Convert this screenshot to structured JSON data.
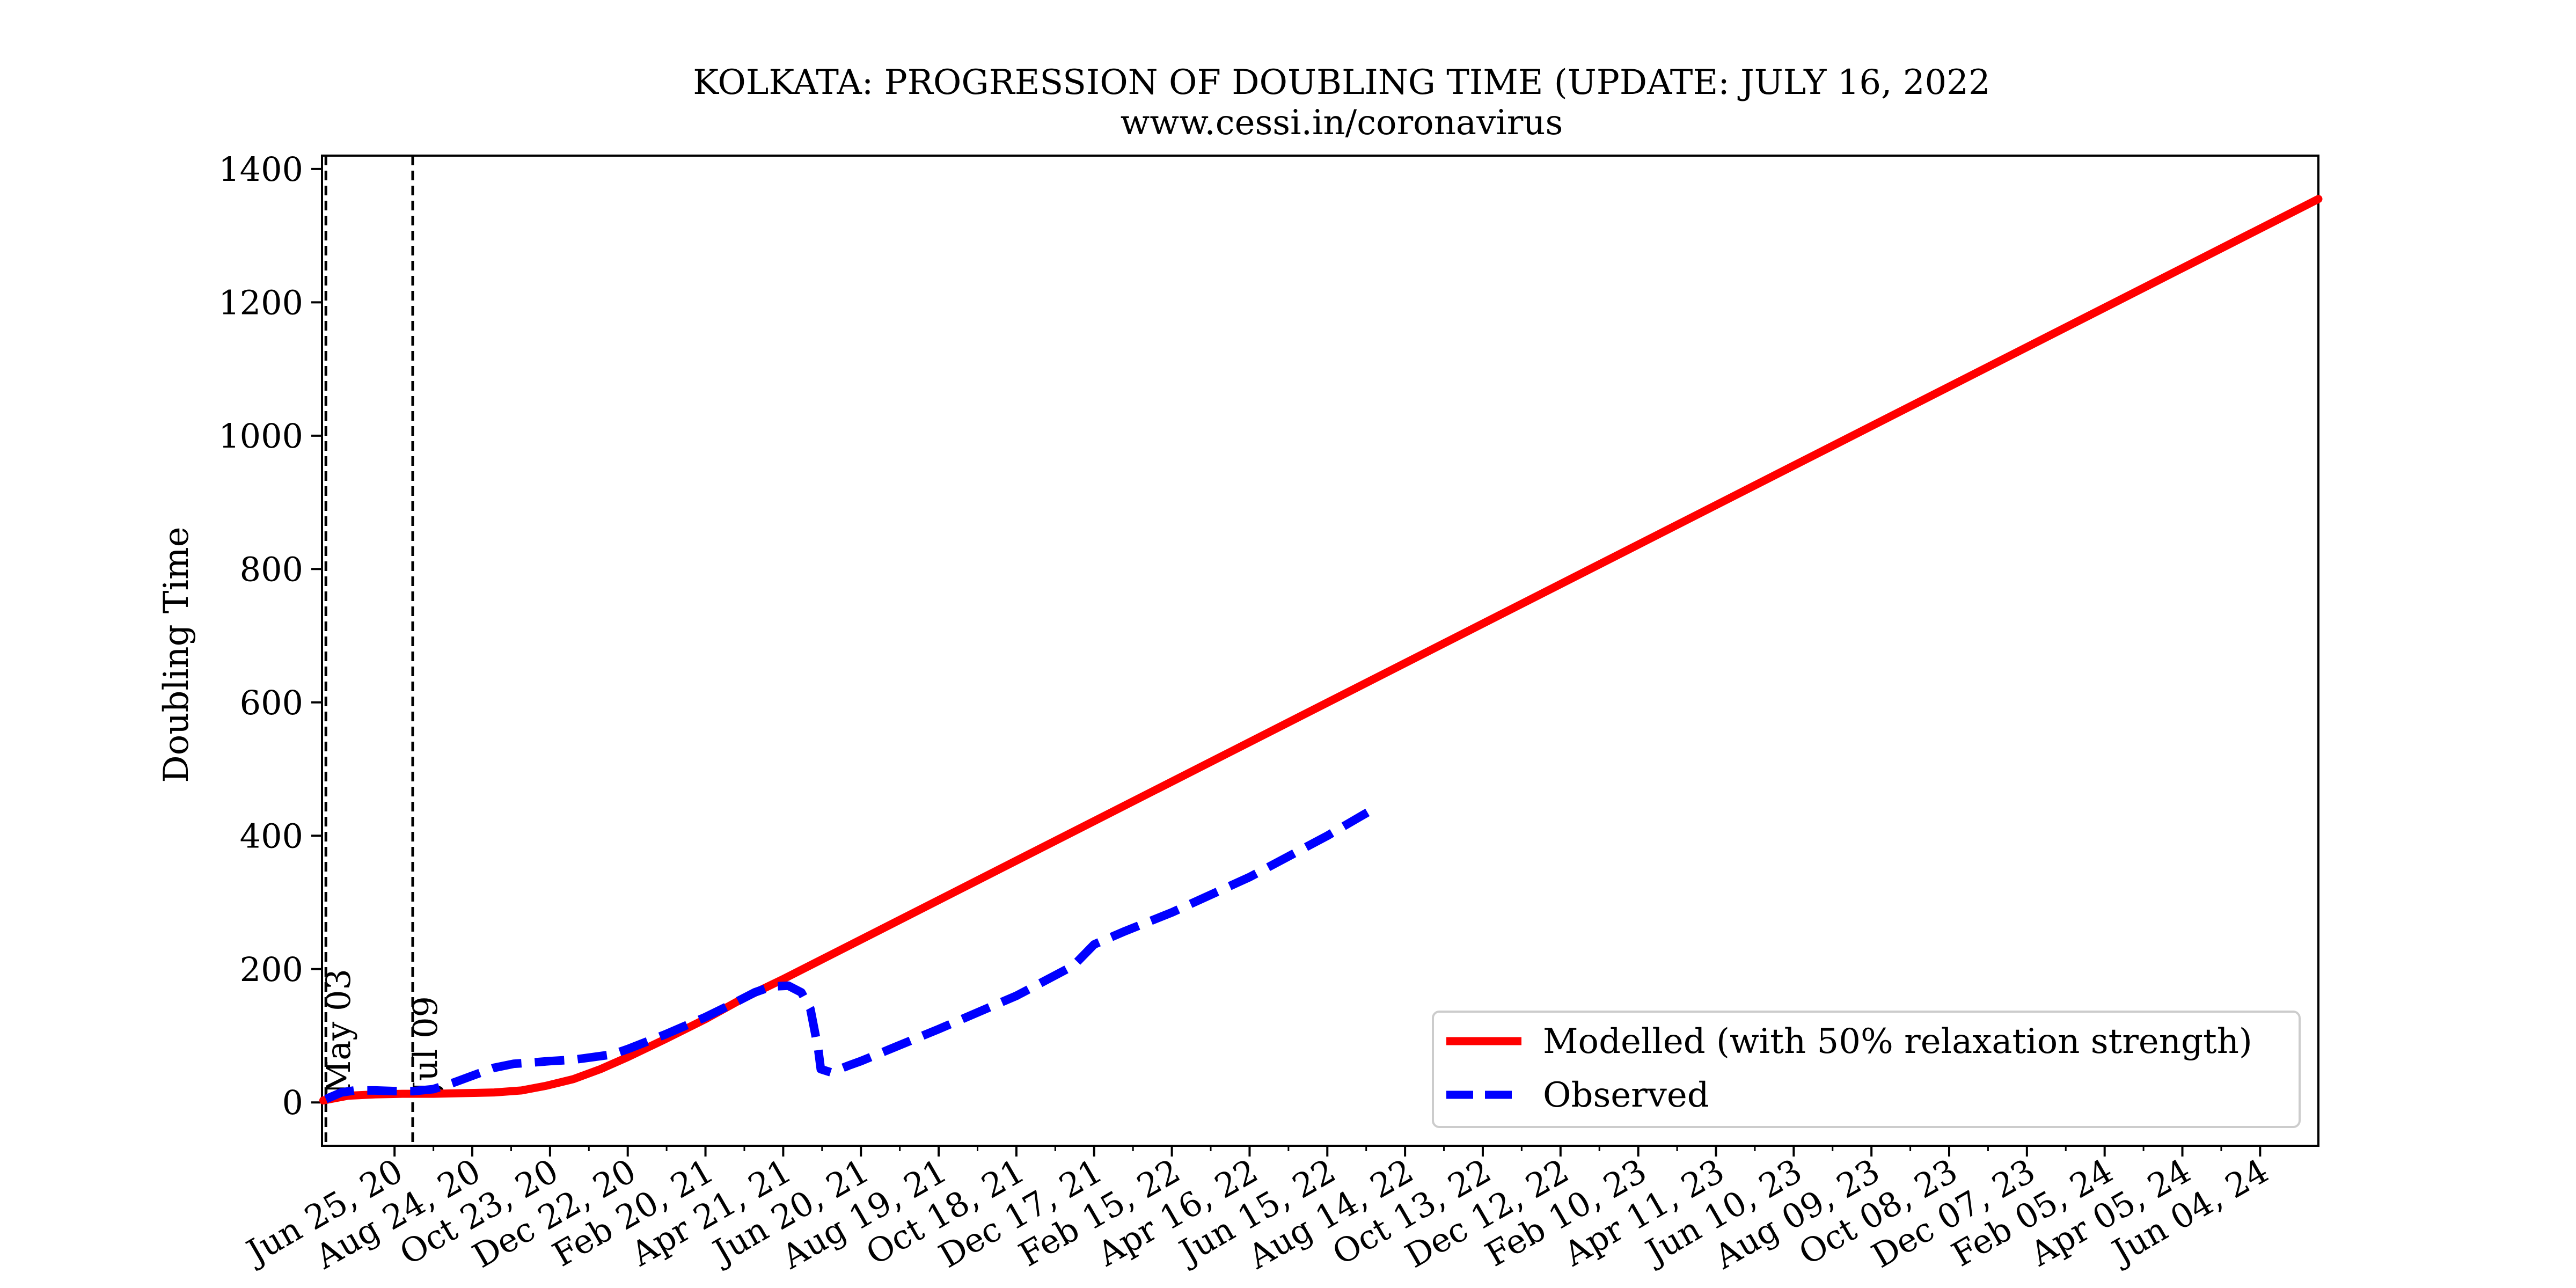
{
  "chart_data": {
    "type": "line",
    "title": "KOLKATA: PROGRESSION OF DOUBLING TIME (UPDATE: JULY 16, 2022",
    "subtitle": "www.cessi.in/coronavirus",
    "xlabel": "",
    "ylabel": "Doubling Time",
    "xlim": [
      "2020-04-30",
      "2024-07-19"
    ],
    "ylim": [
      -65,
      1420
    ],
    "y_ticks": [
      0,
      200,
      400,
      600,
      800,
      1000,
      1200,
      1400
    ],
    "x_ticks": [
      {
        "date": "2020-06-25",
        "label": "Jun 25, 20"
      },
      {
        "date": "2020-08-24",
        "label": "Aug 24, 20"
      },
      {
        "date": "2020-10-23",
        "label": "Oct 23, 20"
      },
      {
        "date": "2020-12-22",
        "label": "Dec 22, 20"
      },
      {
        "date": "2021-02-20",
        "label": "Feb 20, 21"
      },
      {
        "date": "2021-04-21",
        "label": "Apr 21, 21"
      },
      {
        "date": "2021-06-20",
        "label": "Jun 20, 21"
      },
      {
        "date": "2021-08-19",
        "label": "Aug 19, 21"
      },
      {
        "date": "2021-10-18",
        "label": "Oct 18, 21"
      },
      {
        "date": "2021-12-17",
        "label": "Dec 17, 21"
      },
      {
        "date": "2022-02-15",
        "label": "Feb 15, 22"
      },
      {
        "date": "2022-04-16",
        "label": "Apr 16, 22"
      },
      {
        "date": "2022-06-15",
        "label": "Jun 15, 22"
      },
      {
        "date": "2022-08-14",
        "label": "Aug 14, 22"
      },
      {
        "date": "2022-10-13",
        "label": "Oct 13, 22"
      },
      {
        "date": "2022-12-12",
        "label": "Dec 12, 22"
      },
      {
        "date": "2023-02-10",
        "label": "Feb 10, 23"
      },
      {
        "date": "2023-04-11",
        "label": "Apr 11, 23"
      },
      {
        "date": "2023-06-10",
        "label": "Jun 10, 23"
      },
      {
        "date": "2023-08-09",
        "label": "Aug 09, 23"
      },
      {
        "date": "2023-10-08",
        "label": "Oct 08, 23"
      },
      {
        "date": "2023-12-07",
        "label": "Dec 07, 23"
      },
      {
        "date": "2024-02-05",
        "label": "Feb 05, 24"
      },
      {
        "date": "2024-04-05",
        "label": "Apr 05, 24"
      },
      {
        "date": "2024-06-04",
        "label": "Jun 04, 24"
      }
    ],
    "vlines": [
      {
        "date": "2020-05-03",
        "label": "May 03"
      },
      {
        "date": "2020-07-09",
        "label": "Jul 09"
      }
    ],
    "series": [
      {
        "name": "Modelled (with 50% relaxation strength)",
        "color": "#ff0000",
        "style": "solid",
        "x": [
          "2020-05-01",
          "2020-05-20",
          "2020-06-10",
          "2020-07-01",
          "2020-07-25",
          "2020-08-20",
          "2020-09-10",
          "2020-10-01",
          "2020-10-20",
          "2020-11-10",
          "2020-12-01",
          "2020-12-22",
          "2021-01-20",
          "2021-02-20",
          "2021-03-20",
          "2021-04-21",
          "2024-07-19"
        ],
        "y": [
          3,
          10,
          12,
          13,
          13,
          14,
          15,
          18,
          25,
          35,
          50,
          68,
          95,
          125,
          155,
          185,
          1355
        ]
      },
      {
        "name": "Observed",
        "color": "#0000ff",
        "style": "dashed",
        "x": [
          "2020-05-03",
          "2020-05-15",
          "2020-05-25",
          "2020-06-10",
          "2020-06-25",
          "2020-07-10",
          "2020-07-25",
          "2020-08-10",
          "2020-08-24",
          "2020-09-10",
          "2020-09-25",
          "2020-10-10",
          "2020-10-23",
          "2020-11-10",
          "2020-11-25",
          "2020-12-10",
          "2020-12-22",
          "2021-01-20",
          "2021-02-20",
          "2021-03-15",
          "2021-03-30",
          "2021-04-12",
          "2021-04-25",
          "2021-05-05",
          "2021-05-12",
          "2021-05-18",
          "2021-05-20",
          "2021-05-28",
          "2021-06-10",
          "2021-06-20",
          "2021-08-19",
          "2021-10-18",
          "2021-12-01",
          "2021-12-17",
          "2022-01-10",
          "2022-02-15",
          "2022-04-16",
          "2022-06-15",
          "2022-07-16"
        ],
        "y": [
          5,
          15,
          18,
          18,
          17,
          17,
          20,
          30,
          40,
          52,
          58,
          60,
          62,
          64,
          68,
          72,
          80,
          102,
          128,
          150,
          165,
          174,
          175,
          165,
          140,
          80,
          50,
          45,
          55,
          62,
          110,
          160,
          205,
          237,
          257,
          285,
          338,
          400,
          435
        ]
      }
    ],
    "legend": {
      "position": "lower-right",
      "entries": [
        "Modelled (with 50% relaxation strength)",
        "Observed"
      ]
    },
    "grid": false
  }
}
